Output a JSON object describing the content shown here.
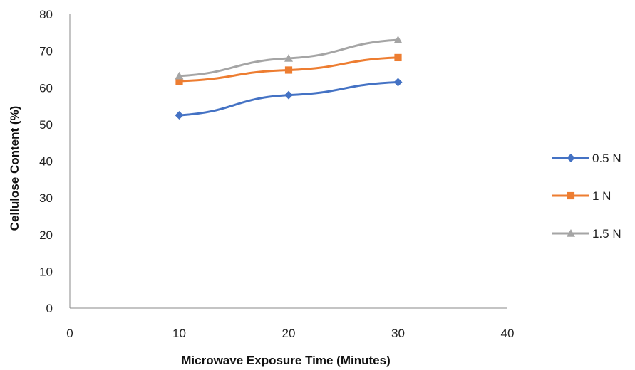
{
  "chart_data": {
    "type": "line",
    "title": "",
    "xlabel": "Microwave Exposure Time (Minutes)",
    "ylabel": "Cellulose Content (%)",
    "xlim": [
      0,
      40
    ],
    "ylim": [
      0,
      80
    ],
    "xticks": [
      0,
      10,
      20,
      30,
      40
    ],
    "yticks": [
      0,
      10,
      20,
      30,
      40,
      50,
      60,
      70,
      80
    ],
    "grid": false,
    "legend_position": "right",
    "x": [
      10,
      20,
      30
    ],
    "series": [
      {
        "name": "0.5 N",
        "values": [
          52.5,
          58.0,
          61.5
        ],
        "color": "#4472C4",
        "marker": "diamond"
      },
      {
        "name": "1 N",
        "values": [
          61.8,
          64.8,
          68.2
        ],
        "color": "#ED7D31",
        "marker": "square"
      },
      {
        "name": "1.5 N",
        "values": [
          63.2,
          68.0,
          73.0
        ],
        "color": "#A5A5A5",
        "marker": "triangle"
      }
    ]
  }
}
